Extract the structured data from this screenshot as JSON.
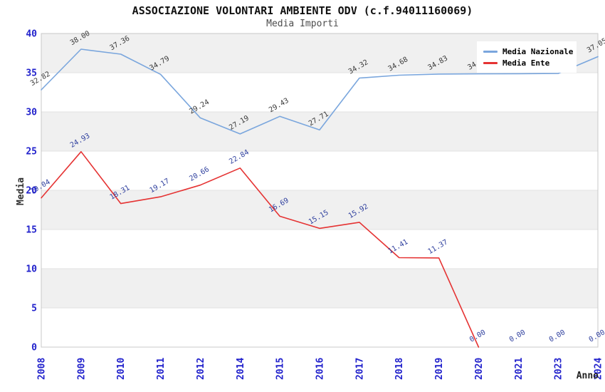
{
  "title": "ASSOCIAZIONE VOLONTARI AMBIENTE ODV (c.f.94011160069)",
  "subtitle": "Media Importi",
  "legend": {
    "items": [
      {
        "label": "Media Nazionale",
        "color": "#7aa6dd"
      },
      {
        "label": "Media Ente",
        "color": "#e53333"
      }
    ]
  },
  "colors": {
    "tick_label": "#2222cc",
    "band_gray": "#f0f0f0",
    "grid_line": "#e2e2e2",
    "plot_border": "#c8c8c8",
    "axis_title": "#333333",
    "background": "#ffffff"
  },
  "chart_data": {
    "type": "line",
    "title": "ASSOCIAZIONE VOLONTARI AMBIENTE ODV (c.f.94011160069)",
    "subtitle": "Media Importi",
    "xlabel": "Anno",
    "ylabel": "Media",
    "ylim": [
      0,
      40
    ],
    "yticks": [
      0,
      5,
      10,
      15,
      20,
      25,
      30,
      35,
      40
    ],
    "grid": "horizontal-bands-alternating",
    "legend_position": "top-right-inside",
    "categories": [
      "2008",
      "2009",
      "2010",
      "2011",
      "2012",
      "2014",
      "2015",
      "2016",
      "2017",
      "2018",
      "2019",
      "2020",
      "2021",
      "2023",
      "2024"
    ],
    "series": [
      {
        "name": "Media Nazionale",
        "color": "#7aa6dd",
        "label_color": "#3a3a3a",
        "values": [
          32.82,
          38.0,
          37.36,
          34.79,
          29.24,
          27.19,
          29.43,
          27.71,
          34.32,
          34.68,
          34.83,
          34.85,
          34.87,
          34.9,
          37.05
        ]
      },
      {
        "name": "Media Ente",
        "color": "#e53333",
        "label_color": "#2e3f9e",
        "stop_at_first_zero": true,
        "values": [
          19.04,
          24.93,
          18.31,
          19.17,
          20.66,
          22.84,
          16.69,
          15.15,
          15.92,
          11.41,
          11.37,
          0.0,
          0.0,
          0.0,
          0.0
        ]
      }
    ]
  }
}
